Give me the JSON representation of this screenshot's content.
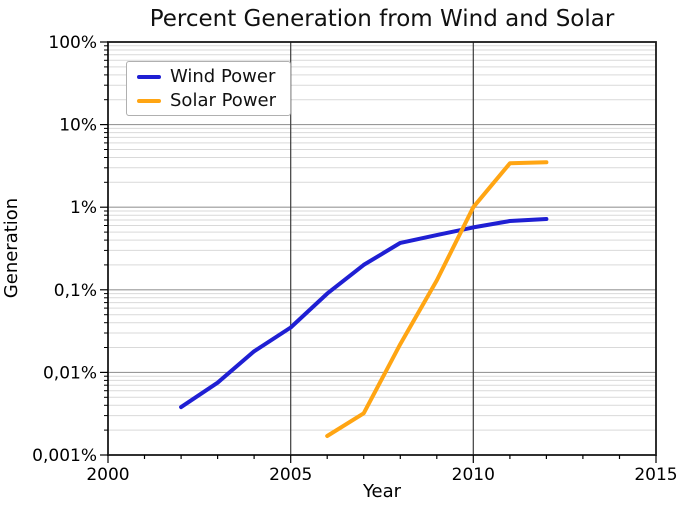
{
  "chart_data": {
    "type": "line",
    "title": "Percent Generation from Wind and Solar",
    "xlabel": "Year",
    "ylabel": "Generation",
    "x_range": [
      2000,
      2015
    ],
    "y_scale": "log",
    "y_unit": "percent",
    "y_range": [
      0.001,
      100
    ],
    "grid": {
      "minor_color": "#d9d9d9",
      "major_color": "#999999",
      "x_line_color": "#3c3c3c",
      "spine_color": "#1a1a1a"
    },
    "x_major_ticks": [
      {
        "value": 2000,
        "label": "2000"
      },
      {
        "value": 2005,
        "label": "2005"
      },
      {
        "value": 2010,
        "label": "2010"
      },
      {
        "value": 2015,
        "label": "2015"
      }
    ],
    "x_minor_tick_step": 1,
    "x_gridlines": [
      2005,
      2010
    ],
    "y_major_ticks": [
      {
        "value": 100,
        "label": "100%"
      },
      {
        "value": 10,
        "label": "10%"
      },
      {
        "value": 1,
        "label": "1%"
      },
      {
        "value": 0.1,
        "label": "0,1%"
      },
      {
        "value": 0.01,
        "label": "0,01%"
      },
      {
        "value": 0.001,
        "label": "0,001%"
      }
    ],
    "legend": {
      "position": "top-left",
      "entries": [
        "Wind Power",
        "Solar Power"
      ]
    },
    "series": [
      {
        "name": "Wind Power",
        "color": "#1f1fd3",
        "x": [
          2002,
          2003,
          2004,
          2005,
          2006,
          2007,
          2008,
          2009,
          2010,
          2011,
          2012
        ],
        "y_percent": [
          0.0038,
          0.0075,
          0.018,
          0.035,
          0.09,
          0.2,
          0.37,
          0.46,
          0.57,
          0.68,
          0.72
        ]
      },
      {
        "name": "Solar Power",
        "color": "#ffa513",
        "x": [
          2006,
          2007,
          2008,
          2009,
          2010,
          2011,
          2012
        ],
        "y_percent": [
          0.0017,
          0.0032,
          0.022,
          0.13,
          1.0,
          3.4,
          3.5
        ]
      }
    ]
  }
}
